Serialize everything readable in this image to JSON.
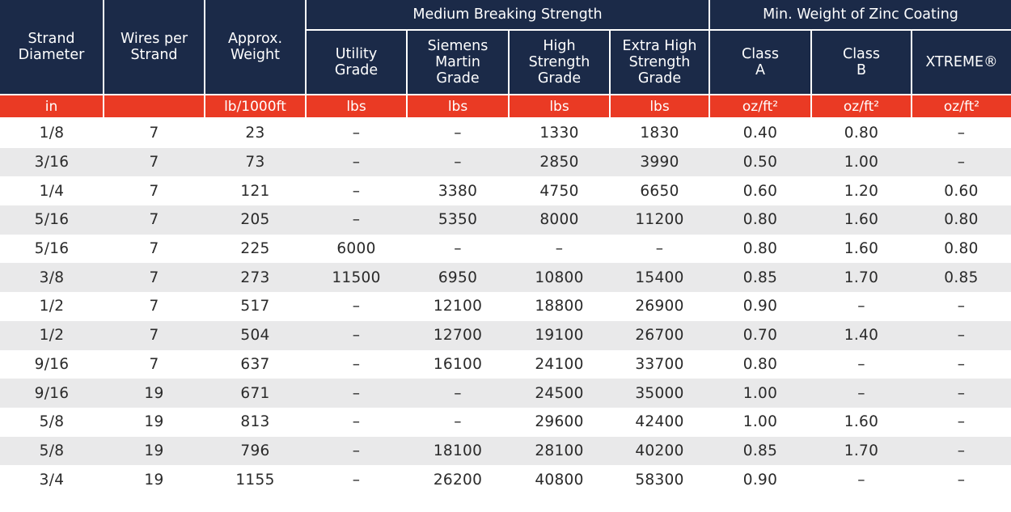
{
  "header": {
    "strand_diameter": "Strand\nDiameter",
    "wires_per_strand": "Wires per\nStrand",
    "approx_weight": "Approx.\nWeight",
    "medium_breaking_strength": "Medium Breaking Strength",
    "min_weight_zinc_coating": "Min. Weight of Zinc Coating",
    "utility_grade": "Utility\nGrade",
    "siemens_martin_grade": "Siemens\nMartin\nGrade",
    "high_strength_grade": "High\nStrength\nGrade",
    "extra_high_strength_grade": "Extra High\nStrength\nGrade",
    "class_a": "Class\nA",
    "class_b": "Class\nB",
    "xtreme": "XTREME®"
  },
  "units": [
    "in",
    "",
    "lb/1000ft",
    "lbs",
    "lbs",
    "lbs",
    "lbs",
    "oz/ft²",
    "oz/ft²",
    "oz/ft²"
  ],
  "rows": [
    [
      "1/8",
      "7",
      "23",
      "–",
      "–",
      "1330",
      "1830",
      "0.40",
      "0.80",
      "–"
    ],
    [
      "3/16",
      "7",
      "73",
      "–",
      "–",
      "2850",
      "3990",
      "0.50",
      "1.00",
      "–"
    ],
    [
      "1/4",
      "7",
      "121",
      "–",
      "3380",
      "4750",
      "6650",
      "0.60",
      "1.20",
      "0.60"
    ],
    [
      "5/16",
      "7",
      "205",
      "–",
      "5350",
      "8000",
      "11200",
      "0.80",
      "1.60",
      "0.80"
    ],
    [
      "5/16",
      "7",
      "225",
      "6000",
      "–",
      "–",
      "–",
      "0.80",
      "1.60",
      "0.80"
    ],
    [
      "3/8",
      "7",
      "273",
      "11500",
      "6950",
      "10800",
      "15400",
      "0.85",
      "1.70",
      "0.85"
    ],
    [
      "1/2",
      "7",
      "517",
      "–",
      "12100",
      "18800",
      "26900",
      "0.90",
      "–",
      "–"
    ],
    [
      "1/2",
      "7",
      "504",
      "–",
      "12700",
      "19100",
      "26700",
      "0.70",
      "1.40",
      "–"
    ],
    [
      "9/16",
      "7",
      "637",
      "–",
      "16100",
      "24100",
      "33700",
      "0.80",
      "–",
      "–"
    ],
    [
      "9/16",
      "19",
      "671",
      "–",
      "–",
      "24500",
      "35000",
      "1.00",
      "–",
      "–"
    ],
    [
      "5/8",
      "19",
      "813",
      "–",
      "–",
      "29600",
      "42400",
      "1.00",
      "1.60",
      "–"
    ],
    [
      "5/8",
      "19",
      "796",
      "–",
      "18100",
      "28100",
      "40200",
      "0.85",
      "1.70",
      "–"
    ],
    [
      "3/4",
      "19",
      "1155",
      "–",
      "26200",
      "40800",
      "58300",
      "0.90",
      "–",
      "–"
    ]
  ],
  "colors": {
    "header_bg": "#1b2a48",
    "unit_row_bg": "#ea3a24",
    "stripe_bg": "#e9e9ea",
    "body_text": "#2a2a2a"
  }
}
